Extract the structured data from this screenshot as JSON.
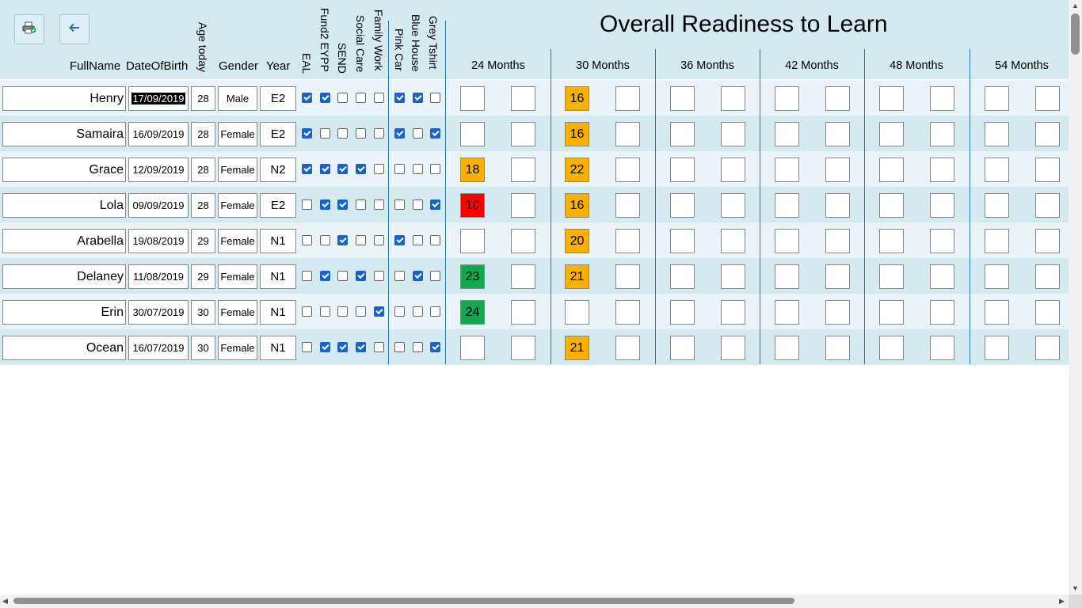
{
  "toolbar": {
    "print_icon": "printer-check-icon",
    "back_icon": "back-arrow-icon"
  },
  "title": "Overall Readiness to Learn",
  "headers": {
    "fullname": "FullName",
    "dob": "DateOfBirth",
    "age": "Age today",
    "gender": "Gender",
    "year": "Year",
    "eal": "EAL",
    "fund2": "Fund2 EYPP",
    "send": "SEND",
    "social": "Social Care",
    "family": "Family Work",
    "pink": "Pink Car",
    "blue": "Blue House",
    "grey": "Grey Tshirt"
  },
  "months": [
    "24 Months",
    "30 Months",
    "36 Months",
    "42 Months",
    "48 Months",
    "54 Months"
  ],
  "colors": {
    "orange": "#f8b100",
    "red": "#fe0000",
    "green": "#11a94f"
  },
  "rows": [
    {
      "name": "Henry",
      "dob": "17/09/2019",
      "age": "28",
      "gender": "Male",
      "year": "E2",
      "checks": [
        true,
        true,
        false,
        false,
        false,
        true,
        true,
        false
      ],
      "m24": null,
      "m24c": null,
      "m30": "16",
      "m30c": "orange"
    },
    {
      "name": "Samaira",
      "dob": "16/09/2019",
      "age": "28",
      "gender": "Female",
      "year": "E2",
      "checks": [
        true,
        false,
        false,
        false,
        false,
        true,
        false,
        true
      ],
      "m24": null,
      "m24c": null,
      "m30": "16",
      "m30c": "orange"
    },
    {
      "name": "Grace",
      "dob": "12/09/2019",
      "age": "28",
      "gender": "Female",
      "year": "N2",
      "checks": [
        true,
        true,
        true,
        true,
        false,
        false,
        false,
        false
      ],
      "m24": "18",
      "m24c": "orange",
      "m30": "22",
      "m30c": "orange"
    },
    {
      "name": "Lola",
      "dob": "09/09/2019",
      "age": "28",
      "gender": "Female",
      "year": "E2",
      "checks": [
        false,
        true,
        true,
        false,
        false,
        false,
        false,
        true
      ],
      "m24": "10",
      "m24c": "red",
      "m30": "16",
      "m30c": "orange"
    },
    {
      "name": "Arabella",
      "dob": "19/08/2019",
      "age": "29",
      "gender": "Female",
      "year": "N1",
      "checks": [
        false,
        false,
        true,
        false,
        false,
        true,
        false,
        false
      ],
      "m24": null,
      "m24c": null,
      "m30": "20",
      "m30c": "orange"
    },
    {
      "name": "Delaney",
      "dob": "11/08/2019",
      "age": "29",
      "gender": "Female",
      "year": "N1",
      "checks": [
        false,
        true,
        false,
        true,
        false,
        false,
        true,
        false
      ],
      "m24": "23",
      "m24c": "green",
      "m30": "21",
      "m30c": "orange"
    },
    {
      "name": "Erin",
      "dob": "30/07/2019",
      "age": "30",
      "gender": "Female",
      "year": "N1",
      "checks": [
        false,
        false,
        false,
        false,
        true,
        false,
        false,
        false
      ],
      "m24": "24",
      "m24c": "green",
      "m30": null,
      "m30c": null
    },
    {
      "name": "Ocean",
      "dob": "16/07/2019",
      "age": "30",
      "gender": "Female",
      "year": "N1",
      "checks": [
        false,
        true,
        true,
        true,
        false,
        false,
        false,
        true
      ],
      "m24": null,
      "m24c": null,
      "m30": "21",
      "m30c": "orange"
    }
  ]
}
